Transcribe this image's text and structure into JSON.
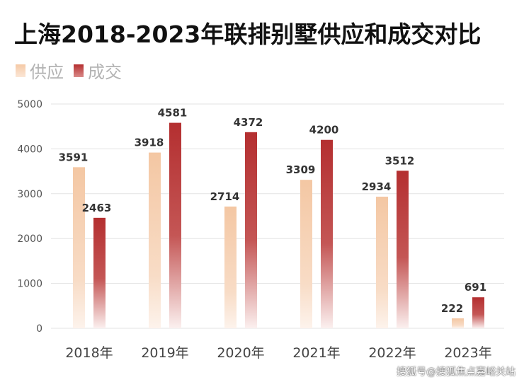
{
  "chart_data": {
    "type": "bar",
    "title": "上海2018-2023年联排别墅供应和成交对比",
    "categories": [
      "2018年",
      "2019年",
      "2020年",
      "2021年",
      "2022年",
      "2023年"
    ],
    "series": [
      {
        "name": "供应",
        "values": [
          3591,
          3918,
          2714,
          3309,
          2934,
          222
        ],
        "color": "#f5c9a6"
      },
      {
        "name": "成交",
        "values": [
          2463,
          4581,
          4372,
          4200,
          3512,
          691
        ],
        "color": "#b52f30"
      }
    ],
    "yticks": [
      0,
      1000,
      2000,
      3000,
      4000,
      5000
    ],
    "ylim": [
      0,
      5000
    ],
    "xlabel": "",
    "ylabel": "",
    "grid": true,
    "legend_position": "top-left"
  },
  "watermark": "搜狐号@搜狐焦点嘉峪关站"
}
